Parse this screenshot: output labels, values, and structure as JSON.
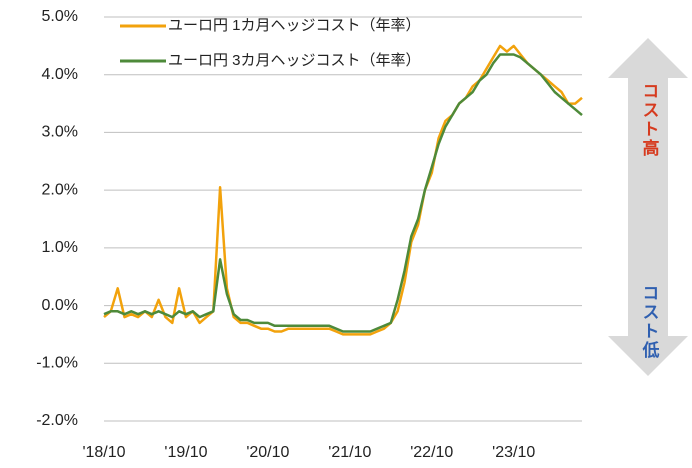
{
  "chart_data": {
    "type": "line",
    "categories": [
      "'18/10",
      null,
      null,
      null,
      null,
      null,
      null,
      null,
      null,
      null,
      null,
      null,
      "'19/10",
      null,
      null,
      null,
      null,
      null,
      null,
      null,
      null,
      null,
      null,
      null,
      "'20/10",
      null,
      null,
      null,
      null,
      null,
      null,
      null,
      null,
      null,
      null,
      null,
      "'21/10",
      null,
      null,
      null,
      null,
      null,
      null,
      null,
      null,
      null,
      null,
      null,
      "'22/10",
      null,
      null,
      null,
      null,
      null,
      null,
      null,
      null,
      null,
      null,
      null,
      "'23/10",
      null,
      null,
      null,
      null,
      null,
      null,
      null,
      null,
      null,
      null
    ],
    "series": [
      {
        "name": "ユーロ円 1カ月ヘッジコスト（年率）",
        "color": "#f2a20c",
        "values": [
          -0.2,
          -0.1,
          0.3,
          -0.2,
          -0.15,
          -0.2,
          -0.1,
          -0.2,
          0.1,
          -0.2,
          -0.3,
          0.3,
          -0.2,
          -0.1,
          -0.3,
          -0.2,
          -0.1,
          2.05,
          0.3,
          -0.2,
          -0.3,
          -0.3,
          -0.35,
          -0.4,
          -0.4,
          -0.45,
          -0.45,
          -0.4,
          -0.4,
          -0.4,
          -0.4,
          -0.4,
          -0.4,
          -0.4,
          -0.45,
          -0.5,
          -0.5,
          -0.5,
          -0.5,
          -0.5,
          -0.45,
          -0.4,
          -0.3,
          -0.1,
          0.4,
          1.1,
          1.4,
          2.0,
          2.3,
          2.9,
          3.2,
          3.3,
          3.5,
          3.6,
          3.8,
          3.9,
          4.1,
          4.3,
          4.5,
          4.4,
          4.5,
          4.35,
          4.2,
          4.1,
          4.0,
          3.9,
          3.8,
          3.7,
          3.5,
          3.5,
          3.6
        ]
      },
      {
        "name": "ユーロ円 3カ月ヘッジコスト（年率）",
        "color": "#4e8a3a",
        "values": [
          -0.15,
          -0.1,
          -0.1,
          -0.15,
          -0.1,
          -0.15,
          -0.1,
          -0.15,
          -0.1,
          -0.15,
          -0.2,
          -0.1,
          -0.15,
          -0.1,
          -0.2,
          -0.15,
          -0.1,
          0.8,
          0.2,
          -0.15,
          -0.25,
          -0.25,
          -0.3,
          -0.3,
          -0.3,
          -0.35,
          -0.35,
          -0.35,
          -0.35,
          -0.35,
          -0.35,
          -0.35,
          -0.35,
          -0.35,
          -0.4,
          -0.45,
          -0.45,
          -0.45,
          -0.45,
          -0.45,
          -0.4,
          -0.35,
          -0.3,
          0.1,
          0.6,
          1.2,
          1.5,
          2.0,
          2.4,
          2.8,
          3.1,
          3.3,
          3.5,
          3.6,
          3.7,
          3.9,
          4.0,
          4.2,
          4.35,
          4.35,
          4.35,
          4.3,
          4.2,
          4.1,
          4.0,
          3.85,
          3.7,
          3.6,
          3.5,
          3.4,
          3.3
        ]
      }
    ],
    "ylim": [
      -2,
      5
    ],
    "yticks": [
      {
        "value": -2,
        "label": "-2.0%"
      },
      {
        "value": -1,
        "label": "-1.0%"
      },
      {
        "value": 0,
        "label": "0.0%"
      },
      {
        "value": 1,
        "label": "1.0%"
      },
      {
        "value": 2,
        "label": "2.0%"
      },
      {
        "value": 3,
        "label": "3.0%"
      },
      {
        "value": 4,
        "label": "4.0%"
      },
      {
        "value": 5,
        "label": "5.0%"
      }
    ],
    "grid": true,
    "legend": "top-left",
    "annotations": [
      "コスト高",
      "コスト低"
    ]
  }
}
